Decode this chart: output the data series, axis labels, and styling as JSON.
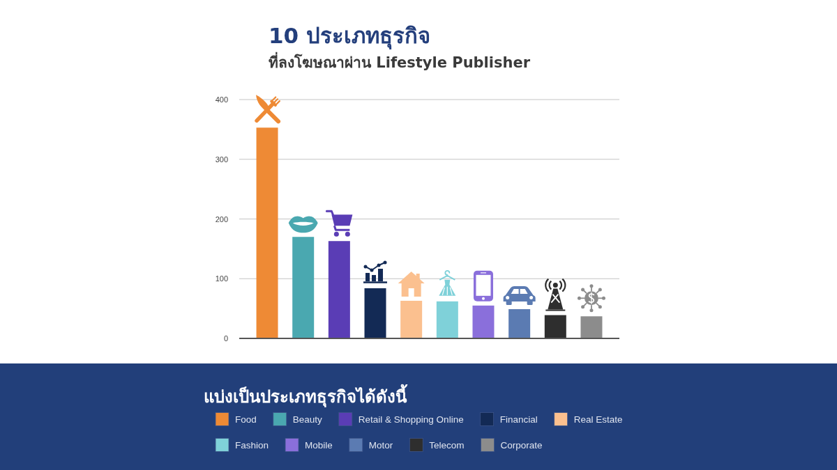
{
  "chart_data": {
    "type": "bar",
    "title": "10 ประเภทธุรกิจ",
    "subtitle": "ที่ลงโฆษณาผ่าน Lifestyle Publisher",
    "legend_title": "แบ่งเป็นประเภทธุรกิจได้ดังนี้",
    "categories": [
      null,
      null,
      null,
      null,
      null,
      null,
      null,
      null,
      null,
      null
    ],
    "series": [
      {
        "name": "Food",
        "color": "#ee8a35",
        "values": [
          353,
          null,
          null,
          null,
          null,
          null,
          null,
          null,
          null,
          null
        ]
      },
      {
        "name": "Beauty",
        "color": "#4aa8b0",
        "values": [
          null,
          170,
          null,
          null,
          null,
          null,
          null,
          null,
          null,
          null
        ]
      },
      {
        "name": "Retail & Shopping Online",
        "color": "#5a3db5",
        "values": [
          null,
          null,
          163,
          null,
          null,
          null,
          null,
          null,
          null,
          null
        ]
      },
      {
        "name": "Financial",
        "color": "#132a55",
        "values": [
          null,
          null,
          null,
          84,
          null,
          null,
          null,
          null,
          null,
          null
        ]
      },
      {
        "name": "Real Estate",
        "color": "#fbc08f",
        "values": [
          null,
          null,
          null,
          null,
          63,
          null,
          null,
          null,
          null,
          null
        ]
      },
      {
        "name": "Fashion",
        "color": "#7fd1d9",
        "values": [
          null,
          null,
          null,
          null,
          null,
          62,
          null,
          null,
          null,
          null
        ]
      },
      {
        "name": "Mobile",
        "color": "#8a6fdb",
        "values": [
          null,
          null,
          null,
          null,
          null,
          null,
          55,
          null,
          null,
          null
        ]
      },
      {
        "name": "Motor",
        "color": "#5b7bb2",
        "values": [
          null,
          null,
          null,
          null,
          null,
          null,
          null,
          49,
          null,
          null
        ]
      },
      {
        "name": "Telecom",
        "color": "#2e2e2e",
        "values": [
          null,
          null,
          null,
          null,
          null,
          null,
          null,
          null,
          39,
          null
        ]
      },
      {
        "name": "Corporate",
        "color": "#8c8c8c",
        "values": [
          null,
          null,
          null,
          null,
          null,
          null,
          null,
          null,
          null,
          37
        ]
      }
    ],
    "ylim": [
      0,
      400
    ],
    "yticks": [
      0,
      100,
      200,
      300,
      400
    ],
    "grid": "y",
    "legend": "bottom",
    "tick_labels": "y"
  }
}
